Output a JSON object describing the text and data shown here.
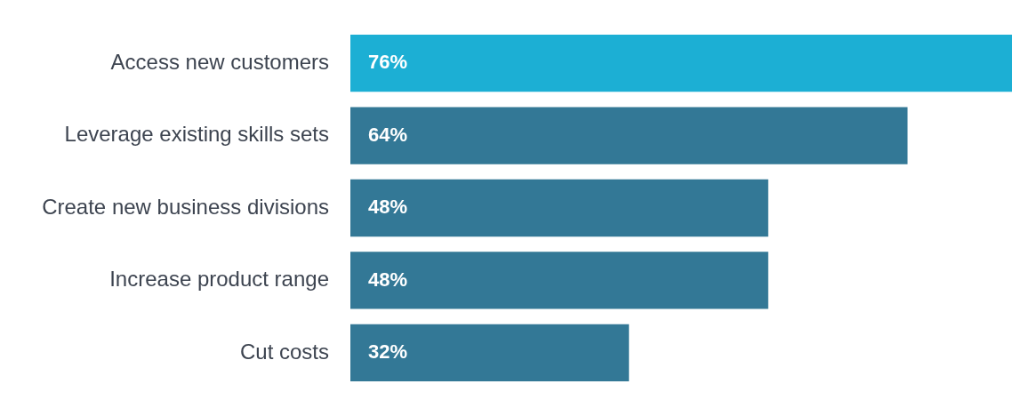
{
  "chart_data": {
    "type": "bar",
    "orientation": "horizontal",
    "categories": [
      "Access new customers",
      "Leverage existing skills sets",
      "Create new business divisions",
      "Increase product range",
      "Cut costs"
    ],
    "values": [
      76,
      64,
      48,
      48,
      32
    ],
    "colors": [
      "#1cafd4",
      "#337896",
      "#337896",
      "#337896",
      "#337896"
    ],
    "data_labels": true,
    "value_labels": [
      "76%",
      "64%",
      "48%",
      "48%",
      "32%"
    ],
    "legend": false
  }
}
